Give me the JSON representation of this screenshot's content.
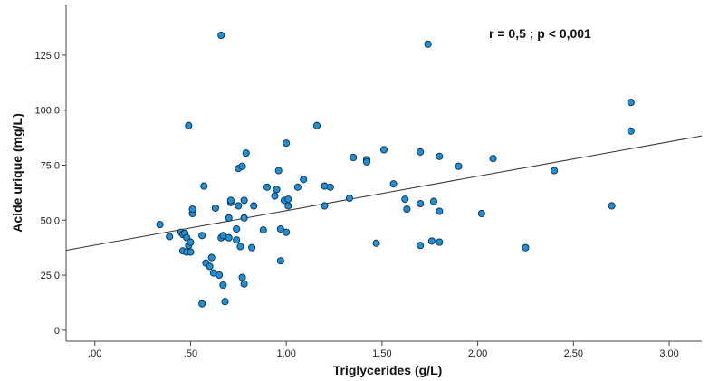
{
  "chart_data": {
    "type": "scatter",
    "xlabel": "Triglycerides (g/L)",
    "ylabel": "Acide urique (mg/L)",
    "annotation": "r = 0,5 ; p < 0,001",
    "xlim": [
      -0.15,
      3.17
    ],
    "ylim": [
      -5,
      148
    ],
    "x_ticks": [
      {
        "value": 0.0,
        "label": ",00"
      },
      {
        "value": 0.5,
        "label": ",50"
      },
      {
        "value": 1.0,
        "label": "1,00"
      },
      {
        "value": 1.5,
        "label": "1,50"
      },
      {
        "value": 2.0,
        "label": "2,00"
      },
      {
        "value": 2.5,
        "label": "2,50"
      },
      {
        "value": 3.0,
        "label": "3,00"
      }
    ],
    "y_ticks": [
      {
        "value": 0,
        "label": ",0"
      },
      {
        "value": 25,
        "label": "25,0"
      },
      {
        "value": 50,
        "label": "50,0"
      },
      {
        "value": 75,
        "label": "75,0"
      },
      {
        "value": 100,
        "label": "100,0"
      },
      {
        "value": 125,
        "label": "125,0"
      }
    ],
    "grid": false,
    "point_color": "#1f8fd6",
    "point_stroke": "#0b2e4a",
    "fit_line": {
      "x": [
        -0.15,
        3.17
      ],
      "y": [
        36.3,
        88.3
      ],
      "color": "#333333"
    },
    "points": [
      [
        0.34,
        48
      ],
      [
        0.39,
        42.5
      ],
      [
        0.45,
        44.5
      ],
      [
        0.46,
        43.5
      ],
      [
        0.47,
        44
      ],
      [
        0.48,
        42
      ],
      [
        0.49,
        38.5
      ],
      [
        0.5,
        40
      ],
      [
        0.46,
        36
      ],
      [
        0.48,
        35.5
      ],
      [
        0.5,
        35.5
      ],
      [
        0.51,
        53
      ],
      [
        0.51,
        55
      ],
      [
        0.49,
        93
      ],
      [
        0.56,
        43
      ],
      [
        0.57,
        65.5
      ],
      [
        0.58,
        30.5
      ],
      [
        0.6,
        29
      ],
      [
        0.61,
        33
      ],
      [
        0.62,
        26
      ],
      [
        0.63,
        55.5
      ],
      [
        0.65,
        25
      ],
      [
        0.66,
        42
      ],
      [
        0.67,
        43
      ],
      [
        0.68,
        13
      ],
      [
        0.67,
        20.5
      ],
      [
        0.56,
        12
      ],
      [
        0.66,
        134
      ],
      [
        0.7,
        42
      ],
      [
        0.7,
        51
      ],
      [
        0.71,
        58
      ],
      [
        0.71,
        59
      ],
      [
        0.74,
        41
      ],
      [
        0.74,
        46
      ],
      [
        0.75,
        56.5
      ],
      [
        0.75,
        73.5
      ],
      [
        0.76,
        38
      ],
      [
        0.77,
        24
      ],
      [
        0.77,
        74.5
      ],
      [
        0.78,
        51
      ],
      [
        0.78,
        59
      ],
      [
        0.79,
        80.5
      ],
      [
        0.78,
        21
      ],
      [
        0.82,
        37.5
      ],
      [
        0.83,
        56.5
      ],
      [
        0.88,
        45.5
      ],
      [
        0.9,
        65
      ],
      [
        0.94,
        61
      ],
      [
        0.95,
        64
      ],
      [
        0.96,
        72.5
      ],
      [
        0.97,
        46
      ],
      [
        0.97,
        31.5
      ],
      [
        1.0,
        44.5
      ],
      [
        0.99,
        59
      ],
      [
        1.0,
        85
      ],
      [
        1.01,
        56.5
      ],
      [
        1.01,
        59.5
      ],
      [
        1.06,
        65
      ],
      [
        1.09,
        68.5
      ],
      [
        1.16,
        93
      ],
      [
        1.2,
        65.5
      ],
      [
        1.2,
        56.5
      ],
      [
        1.23,
        65
      ],
      [
        1.33,
        60
      ],
      [
        1.35,
        78.5
      ],
      [
        1.42,
        77.5
      ],
      [
        1.42,
        76.5
      ],
      [
        1.47,
        39.5
      ],
      [
        1.51,
        82
      ],
      [
        1.56,
        66.5
      ],
      [
        1.62,
        59.5
      ],
      [
        1.63,
        55
      ],
      [
        1.7,
        81
      ],
      [
        1.7,
        57.5
      ],
      [
        1.7,
        38.5
      ],
      [
        1.74,
        130
      ],
      [
        1.76,
        40.5
      ],
      [
        1.77,
        58.5
      ],
      [
        1.8,
        79
      ],
      [
        1.8,
        54
      ],
      [
        1.8,
        40
      ],
      [
        1.9,
        74.5
      ],
      [
        2.02,
        53
      ],
      [
        2.08,
        78
      ],
      [
        2.25,
        37.5
      ],
      [
        2.4,
        72.5
      ],
      [
        2.7,
        56.5
      ],
      [
        2.8,
        103.5
      ],
      [
        2.8,
        90.5
      ]
    ]
  }
}
